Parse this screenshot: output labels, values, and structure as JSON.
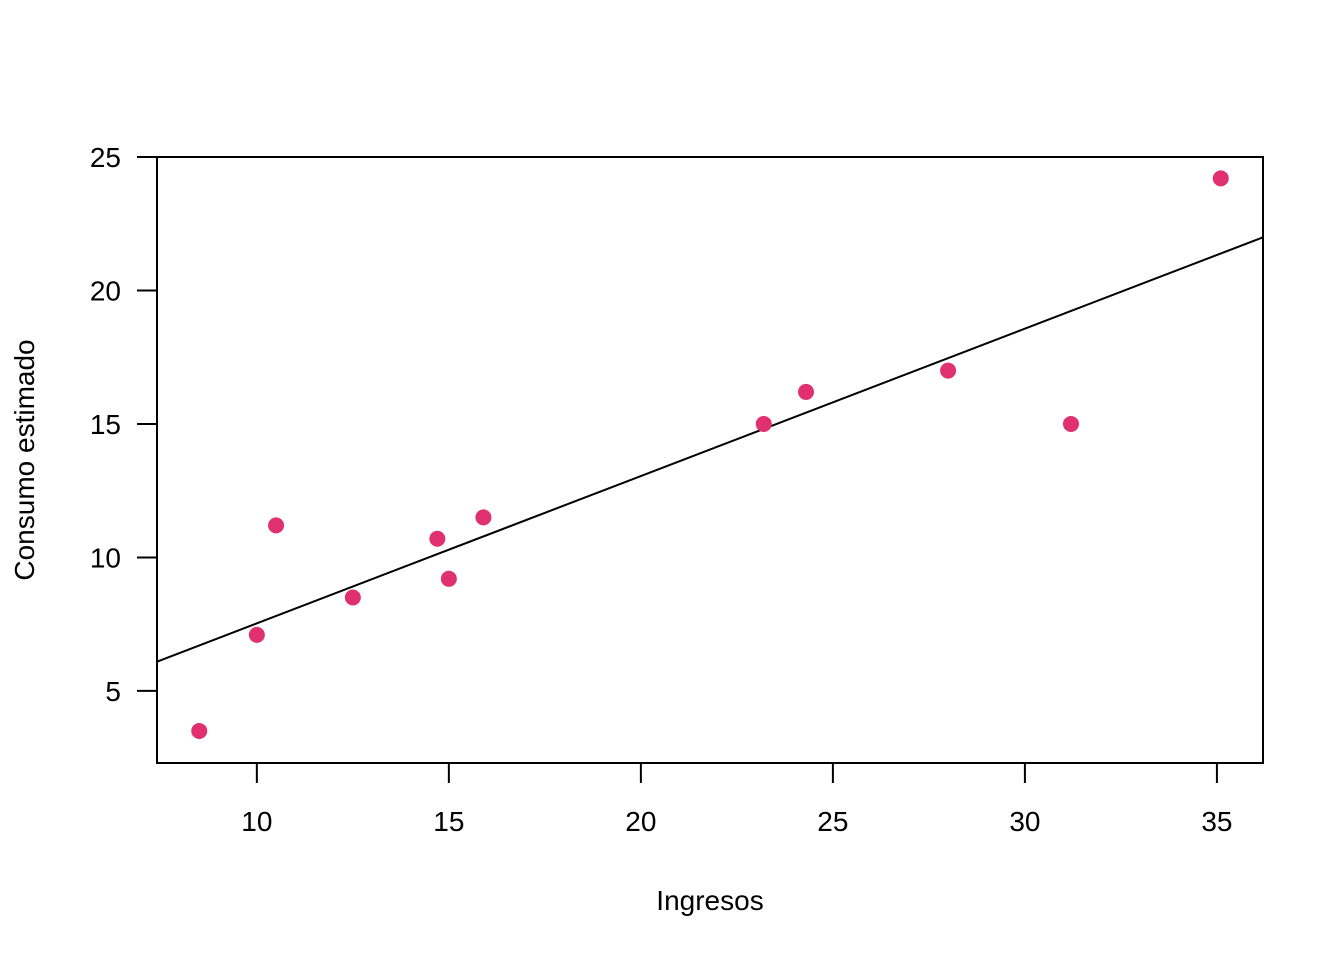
{
  "chart_data": {
    "type": "scatter",
    "xlabel": "Ingresos",
    "ylabel": "Consumo estimado",
    "xlim": [
      7.4,
      36.2
    ],
    "ylim": [
      2.3,
      25.0
    ],
    "x_ticks": [
      10,
      15,
      20,
      25,
      30,
      35
    ],
    "y_ticks": [
      5,
      10,
      15,
      20,
      25
    ],
    "x_tick_labels": [
      "10",
      "15",
      "20",
      "25",
      "30",
      "35"
    ],
    "y_tick_labels": [
      "5",
      "10",
      "15",
      "20",
      "25"
    ],
    "points": [
      {
        "x": 8.5,
        "y": 3.5
      },
      {
        "x": 10.0,
        "y": 7.1
      },
      {
        "x": 10.5,
        "y": 11.2
      },
      {
        "x": 12.5,
        "y": 8.5
      },
      {
        "x": 14.7,
        "y": 10.7
      },
      {
        "x": 15.0,
        "y": 9.2
      },
      {
        "x": 15.9,
        "y": 11.5
      },
      {
        "x": 23.2,
        "y": 15.0
      },
      {
        "x": 24.3,
        "y": 16.2
      },
      {
        "x": 28.0,
        "y": 17.0
      },
      {
        "x": 31.2,
        "y": 15.0
      },
      {
        "x": 35.1,
        "y": 24.2
      }
    ],
    "fit_line": {
      "intercept": 2.01,
      "slope": 0.552
    },
    "point_color": "#E0306F",
    "line_color": "#000000",
    "grid": false,
    "box": true
  }
}
